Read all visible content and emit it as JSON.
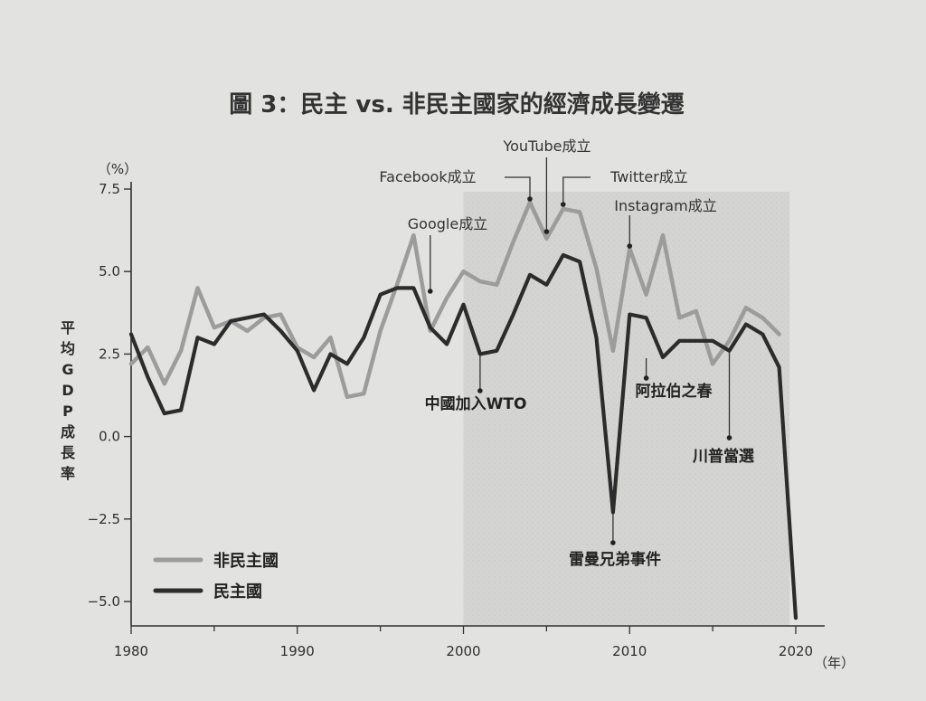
{
  "chart_data": {
    "type": "line",
    "title": "圖 3：民主 vs. 非民主國家的經濟成長變遷",
    "ylabel": "平均GDP成長率",
    "y_unit": "（%）",
    "x_unit": "（年）",
    "xlim": [
      1980,
      2021
    ],
    "ylim": [
      -5.8,
      7.8
    ],
    "x_ticks": [
      1980,
      1990,
      2000,
      2010,
      2020
    ],
    "y_ticks": [
      7.5,
      5.0,
      2.5,
      0.0,
      -2.5,
      -5.0
    ],
    "y_tick_labels": [
      "7.5",
      "5.0",
      "2.5",
      "0.0",
      "−2.5",
      "−5.0"
    ],
    "grid": false,
    "legend_position": "bottom-left",
    "shaded_range": [
      2000,
      2018
    ],
    "x": [
      1980,
      1981,
      1982,
      1983,
      1984,
      1985,
      1986,
      1987,
      1988,
      1989,
      1990,
      1991,
      1992,
      1993,
      1994,
      1995,
      1996,
      1997,
      1998,
      1999,
      2000,
      2001,
      2002,
      2003,
      2004,
      2005,
      2006,
      2007,
      2008,
      2009,
      2010,
      2011,
      2012,
      2013,
      2014,
      2015,
      2016,
      2017,
      2018,
      2019,
      2020
    ],
    "series": [
      {
        "name": "非民主國",
        "color": "#9c9c9c",
        "values": [
          2.2,
          2.7,
          1.6,
          2.6,
          4.5,
          3.3,
          3.5,
          3.2,
          3.6,
          3.7,
          2.7,
          2.4,
          3.0,
          1.2,
          1.3,
          3.2,
          4.6,
          6.1,
          3.2,
          4.2,
          5.0,
          4.7,
          4.6,
          5.9,
          7.1,
          6.0,
          6.9,
          6.8,
          5.1,
          2.6,
          5.7,
          4.3,
          6.1,
          3.6,
          3.8,
          2.2,
          2.9,
          3.9,
          3.6,
          3.1,
          null
        ]
      },
      {
        "name": "民主國",
        "color": "#2c2c2c",
        "values": [
          3.1,
          1.8,
          0.7,
          0.8,
          3.0,
          2.8,
          3.5,
          3.6,
          3.7,
          3.2,
          2.6,
          1.4,
          2.5,
          2.2,
          3.0,
          4.3,
          4.5,
          4.5,
          3.3,
          2.8,
          4.0,
          2.5,
          2.6,
          3.7,
          4.9,
          4.6,
          5.5,
          5.3,
          3.0,
          -2.3,
          3.7,
          3.6,
          2.4,
          2.9,
          2.9,
          2.9,
          2.6,
          3.4,
          3.1,
          2.1,
          -5.5
        ]
      }
    ],
    "annotations": [
      {
        "label": "Google成立",
        "year": 1998
      },
      {
        "label": "Facebook成立",
        "year": 2004
      },
      {
        "label": "YouTube成立",
        "year": 2005
      },
      {
        "label": "Twitter成立",
        "year": 2006
      },
      {
        "label": "Instagram成立",
        "year": 2010
      },
      {
        "label": "中國加入WTO",
        "year": 2001
      },
      {
        "label": "雷曼兄弟事件",
        "year": 2008
      },
      {
        "label": "阿拉伯之春",
        "year": 2011
      },
      {
        "label": "川普當選",
        "year": 2016
      }
    ]
  }
}
